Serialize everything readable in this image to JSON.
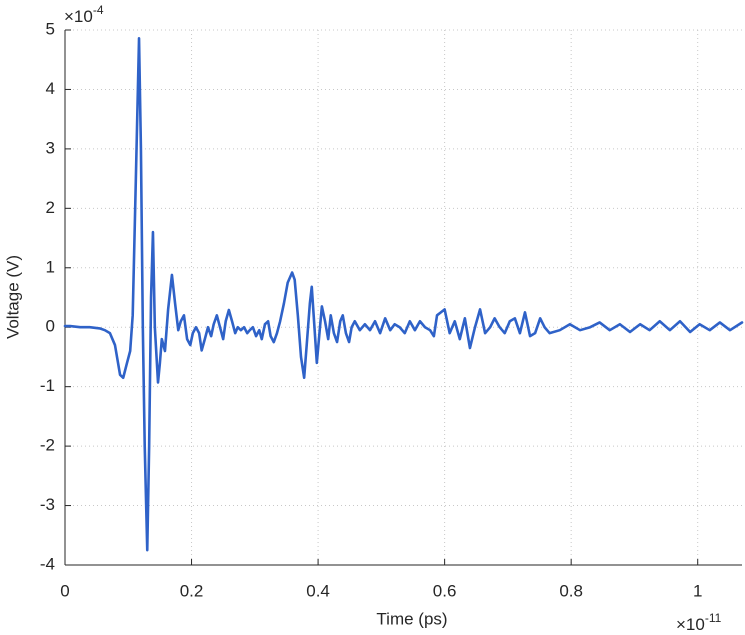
{
  "chart_data": {
    "type": "line",
    "xlabel": "Time (ps)",
    "ylabel": "Voltage (V)",
    "x_exponent": {
      "base": "×10",
      "power": "-11"
    },
    "y_exponent": {
      "base": "×10",
      "power": "-4"
    },
    "xlim": [
      0,
      1.07
    ],
    "ylim": [
      -4,
      5
    ],
    "xticks": [
      0,
      0.2,
      0.4,
      0.6,
      0.8,
      1
    ],
    "yticks": [
      -4,
      -3,
      -2,
      -1,
      0,
      1,
      2,
      3,
      4,
      5
    ],
    "grid": true,
    "x": [
      0.0,
      0.008,
      0.024,
      0.039,
      0.055,
      0.063,
      0.071,
      0.079,
      0.087,
      0.092,
      0.098,
      0.103,
      0.107,
      0.112,
      0.117,
      0.12,
      0.123,
      0.126,
      0.13,
      0.133,
      0.136,
      0.139,
      0.142,
      0.147,
      0.15,
      0.153,
      0.158,
      0.163,
      0.169,
      0.174,
      0.179,
      0.183,
      0.188,
      0.193,
      0.198,
      0.202,
      0.207,
      0.212,
      0.216,
      0.221,
      0.226,
      0.231,
      0.235,
      0.24,
      0.245,
      0.25,
      0.254,
      0.259,
      0.264,
      0.269,
      0.273,
      0.278,
      0.283,
      0.288,
      0.292,
      0.297,
      0.302,
      0.307,
      0.311,
      0.316,
      0.321,
      0.325,
      0.33,
      0.335,
      0.34,
      0.346,
      0.352,
      0.359,
      0.363,
      0.368,
      0.373,
      0.378,
      0.382,
      0.387,
      0.39,
      0.393,
      0.398,
      0.403,
      0.406,
      0.411,
      0.416,
      0.42,
      0.425,
      0.43,
      0.435,
      0.439,
      0.444,
      0.449,
      0.453,
      0.458,
      0.466,
      0.474,
      0.482,
      0.49,
      0.498,
      0.506,
      0.514,
      0.521,
      0.529,
      0.537,
      0.545,
      0.553,
      0.561,
      0.569,
      0.577,
      0.583,
      0.588,
      0.594,
      0.6,
      0.608,
      0.616,
      0.624,
      0.632,
      0.64,
      0.648,
      0.656,
      0.664,
      0.672,
      0.679,
      0.687,
      0.695,
      0.703,
      0.711,
      0.719,
      0.727,
      0.735,
      0.743,
      0.751,
      0.758,
      0.766,
      0.782,
      0.798,
      0.814,
      0.83,
      0.845,
      0.861,
      0.877,
      0.893,
      0.909,
      0.924,
      0.94,
      0.956,
      0.972,
      0.988,
      1.003,
      1.019,
      1.035,
      1.051,
      1.07
    ],
    "series": [
      {
        "color": "#2f62c8",
        "values": [
          0.02,
          0.02,
          0.0,
          0.0,
          -0.02,
          -0.05,
          -0.1,
          -0.3,
          -0.8,
          -0.85,
          -0.6,
          -0.4,
          0.2,
          2.5,
          4.86,
          3,
          0,
          -2,
          -3.75,
          -2,
          0.5,
          1.6,
          0,
          -0.93,
          -0.6,
          -0.2,
          -0.4,
          0.3,
          0.88,
          0.4,
          -0.05,
          0.1,
          0.2,
          -0.2,
          -0.3,
          -0.1,
          0.0,
          -0.1,
          -0.39,
          -0.2,
          0.0,
          -0.15,
          0.05,
          0.2,
          0.0,
          -0.2,
          0.1,
          0.29,
          0.1,
          -0.1,
          0.0,
          -0.05,
          0.0,
          -0.1,
          -0.05,
          0.0,
          -0.15,
          -0.05,
          -0.2,
          0.05,
          0.1,
          -0.15,
          -0.25,
          -0.1,
          0.1,
          0.4,
          0.75,
          0.92,
          0.8,
          0.2,
          -0.5,
          -0.85,
          -0.3,
          0.4,
          0.68,
          0.2,
          -0.6,
          0.0,
          0.35,
          0.1,
          -0.2,
          0.2,
          -0.1,
          -0.25,
          0.1,
          0.2,
          -0.1,
          -0.25,
          0.0,
          0.1,
          -0.05,
          0.05,
          -0.05,
          0.1,
          -0.1,
          0.15,
          -0.05,
          0.05,
          0.0,
          -0.1,
          0.1,
          -0.05,
          0.1,
          0.0,
          -0.05,
          -0.15,
          0.2,
          0.25,
          0.3,
          -0.1,
          0.1,
          -0.2,
          0.15,
          -0.35,
          0.0,
          0.3,
          -0.1,
          0.0,
          0.15,
          0.0,
          -0.1,
          0.1,
          0.15,
          -0.1,
          0.25,
          -0.15,
          -0.1,
          0.15,
          0.0,
          -0.1,
          -0.05,
          0.05,
          -0.05,
          0.0,
          0.08,
          -0.05,
          0.05,
          -0.08,
          0.05,
          -0.05,
          0.1,
          -0.05,
          0.1,
          -0.08,
          0.05,
          -0.05,
          0.08,
          -0.05,
          0.08
        ]
      }
    ]
  }
}
